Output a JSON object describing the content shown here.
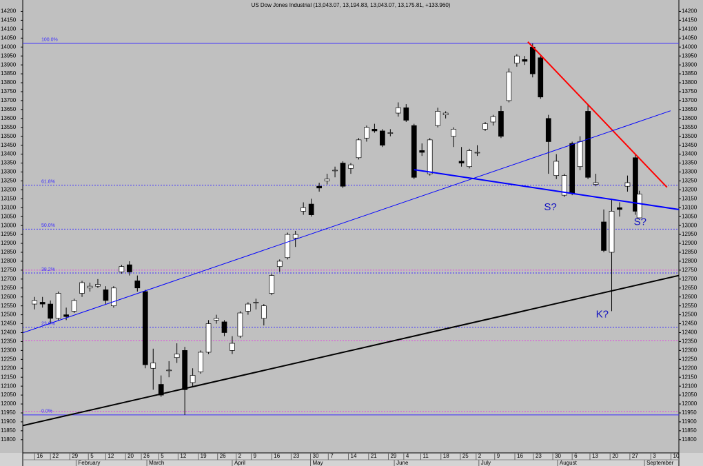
{
  "chart_data": {
    "type": "candlestick",
    "title": "US Dow Jones Industrial (13,043.07, 13,194.83, 13,043.07, 13,175.81, +133.960)",
    "up_color": "#ffffff",
    "down_color": "#000000",
    "x": [
      0,
      2,
      4,
      6,
      8,
      10,
      12,
      14,
      16,
      18,
      20,
      22,
      24,
      26,
      28,
      30,
      32,
      34,
      36,
      38,
      40,
      42,
      44,
      46,
      48,
      50,
      52,
      54,
      56,
      58,
      60,
      62,
      64,
      66,
      68,
      70,
      72,
      74,
      76,
      78,
      80,
      82,
      84,
      86,
      88,
      90,
      92,
      94,
      96,
      98,
      100,
      102,
      104,
      106,
      108,
      110,
      112,
      114,
      116,
      118,
      120,
      122,
      124,
      126,
      128,
      130,
      132,
      134,
      136,
      138,
      140,
      142,
      144,
      146,
      148,
      150,
      152,
      153
    ],
    "open": [
      12560,
      12570,
      12560,
      12480,
      12500,
      12520,
      12620,
      12650,
      12660,
      12640,
      12550,
      12740,
      12780,
      12690,
      12630,
      12200,
      12110,
      12190,
      12260,
      12300,
      12120,
      12180,
      12290,
      12470,
      12460,
      12300,
      12380,
      12520,
      12570,
      12480,
      12620,
      12770,
      12820,
      12930,
      13080,
      13120,
      13220,
      13250,
      13310,
      13350,
      13320,
      13380,
      13490,
      13540,
      13530,
      13520,
      13630,
      13660,
      13560,
      13420,
      13290,
      13560,
      13620,
      13500,
      13360,
      13330,
      13410,
      13540,
      13580,
      13640,
      13700,
      13910,
      13930,
      14000,
      13940,
      13600,
      13280,
      13170,
      13460,
      13330,
      13640,
      13230,
      13020,
      12850,
      13100,
      13220,
      13380,
      13043.07
    ],
    "high": [
      12600,
      12600,
      12580,
      12630,
      12540,
      12590,
      12690,
      12680,
      12700,
      12660,
      12660,
      12780,
      12800,
      12720,
      12640,
      12310,
      12160,
      12240,
      12340,
      12320,
      12200,
      12300,
      12470,
      12500,
      12470,
      12380,
      12520,
      12570,
      12590,
      12560,
      12730,
      12810,
      12960,
      12970,
      13130,
      13150,
      13240,
      13290,
      13330,
      13360,
      13350,
      13490,
      13560,
      13570,
      13540,
      13540,
      13690,
      13680,
      13570,
      13460,
      13490,
      13660,
      13640,
      13550,
      13440,
      13430,
      13450,
      13580,
      13620,
      13670,
      13880,
      13960,
      13950,
      14020,
      13960,
      13620,
      13400,
      13290,
      13470,
      13500,
      13680,
      13290,
      13090,
      13150,
      13130,
      13280,
      13400,
      13194.83
    ],
    "low": [
      12530,
      12540,
      12450,
      12470,
      12470,
      12510,
      12600,
      12630,
      12650,
      12560,
      12540,
      12730,
      12720,
      12630,
      12200,
      12080,
      12040,
      12150,
      12230,
      11939,
      12100,
      12170,
      12280,
      12450,
      12380,
      12280,
      12370,
      12500,
      12530,
      12440,
      12610,
      12740,
      12810,
      12880,
      13060,
      13050,
      13190,
      13230,
      13270,
      13210,
      13290,
      13370,
      13470,
      13520,
      13440,
      13500,
      13610,
      13580,
      13260,
      13390,
      13280,
      13550,
      13600,
      13440,
      13330,
      13320,
      13390,
      13530,
      13560,
      13490,
      13690,
      13890,
      13900,
      13830,
      13710,
      13290,
      13260,
      13160,
      13170,
      13310,
      13260,
      13220,
      12850,
      12520,
      13050,
      13190,
      13060,
      13043.07
    ],
    "close": [
      12580,
      12560,
      12480,
      12620,
      12490,
      12580,
      12680,
      12660,
      12670,
      12580,
      12650,
      12770,
      12740,
      12650,
      12220,
      12230,
      12050,
      12190,
      12280,
      12080,
      12160,
      12290,
      12450,
      12480,
      12400,
      12340,
      12510,
      12560,
      12570,
      12550,
      12720,
      12800,
      12950,
      12950,
      13100,
      13060,
      13210,
      13260,
      13310,
      13220,
      13340,
      13480,
      13550,
      13530,
      13450,
      13520,
      13660,
      13590,
      13270,
      13410,
      13480,
      13640,
      13630,
      13540,
      13350,
      13420,
      13410,
      13570,
      13610,
      13500,
      13860,
      13950,
      13920,
      13850,
      13720,
      13470,
      13360,
      13280,
      13180,
      13470,
      13270,
      13240,
      12860,
      13080,
      13090,
      13240,
      13080,
      13175.81
    ],
    "xlim": [
      -3,
      163
    ],
    "ylim": [
      11780,
      14225
    ],
    "yticks": [
      11800,
      11850,
      11900,
      11950,
      12000,
      12050,
      12100,
      12150,
      12200,
      12250,
      12300,
      12350,
      12400,
      12450,
      12500,
      12550,
      12600,
      12650,
      12700,
      12750,
      12800,
      12850,
      12900,
      12950,
      13000,
      13050,
      13100,
      13150,
      13200,
      13250,
      13300,
      13350,
      13400,
      13450,
      13500,
      13550,
      13600,
      13650,
      13700,
      13750,
      13800,
      13850,
      13900,
      13950,
      14000,
      14050,
      14100,
      14150,
      14200
    ],
    "xticks": [
      {
        "value": 0,
        "label": "16"
      },
      {
        "value": 4,
        "label": "22"
      },
      {
        "value": 8.9,
        "label": "29"
      },
      {
        "value": 13.6,
        "label": "5"
      },
      {
        "value": 18,
        "label": "12"
      },
      {
        "value": 23,
        "label": "20"
      },
      {
        "value": 27,
        "label": "26"
      },
      {
        "value": 31.4,
        "label": "5"
      },
      {
        "value": 36.3,
        "label": "12"
      },
      {
        "value": 41.4,
        "label": "19"
      },
      {
        "value": 46.3,
        "label": "26"
      },
      {
        "value": 51,
        "label": "2"
      },
      {
        "value": 54.8,
        "label": "9"
      },
      {
        "value": 60,
        "label": "16"
      },
      {
        "value": 64.9,
        "label": "23"
      },
      {
        "value": 69.8,
        "label": "30"
      },
      {
        "value": 74.3,
        "label": "7"
      },
      {
        "value": 79.4,
        "label": "14"
      },
      {
        "value": 84.5,
        "label": "21"
      },
      {
        "value": 89.5,
        "label": "29"
      },
      {
        "value": 93.4,
        "label": "4"
      },
      {
        "value": 97.7,
        "label": "11"
      },
      {
        "value": 102.8,
        "label": "18"
      },
      {
        "value": 107.7,
        "label": "25"
      },
      {
        "value": 111.7,
        "label": "2"
      },
      {
        "value": 116.4,
        "label": "9"
      },
      {
        "value": 121.5,
        "label": "16"
      },
      {
        "value": 126.2,
        "label": "23"
      },
      {
        "value": 131.1,
        "label": "30"
      },
      {
        "value": 136,
        "label": "6"
      },
      {
        "value": 140.5,
        "label": "13"
      },
      {
        "value": 145.6,
        "label": "20"
      },
      {
        "value": 150.6,
        "label": "27"
      },
      {
        "value": 155.9,
        "label": "3"
      },
      {
        "value": 161,
        "label": "10"
      }
    ],
    "month_ticks": [
      {
        "value": 10.5,
        "label": "February"
      },
      {
        "value": 28.4,
        "label": "March"
      },
      {
        "value": 50,
        "label": "April"
      },
      {
        "value": 69.8,
        "label": "May"
      },
      {
        "value": 91,
        "label": "June"
      },
      {
        "value": 112.4,
        "label": "July"
      },
      {
        "value": 132.3,
        "label": "August"
      },
      {
        "value": 154.3,
        "label": "September"
      }
    ],
    "fib_levels": [
      {
        "value": 14021,
        "label": "100.0%",
        "style": "solid"
      },
      {
        "value": 13226,
        "label": "61.8%",
        "style": "dotted"
      },
      {
        "value": 12980,
        "label": "50.0%",
        "style": "dotted"
      },
      {
        "value": 12734,
        "label": "38.2%",
        "style": "dotted"
      },
      {
        "value": 12430,
        "label": "23.6%",
        "style": "dotted"
      },
      {
        "value": 11939,
        "label": "0.0%",
        "style": "solid"
      }
    ],
    "fib_color": "#3b2cff",
    "levels": [
      12750,
      12355,
      11958
    ],
    "level_color": "#e040e0",
    "trendlines": [
      {
        "color": "#ff0000",
        "width": 2,
        "points": [
          [
            124.8,
            14029
          ],
          [
            160,
            13214
          ]
        ]
      },
      {
        "color": "#0000ff",
        "width": 1,
        "points": [
          [
            -3,
            12399
          ],
          [
            160.9,
            13643
          ]
        ]
      },
      {
        "color": "#0000ff",
        "width": 2,
        "points": [
          [
            96,
            13313
          ],
          [
            163.2,
            13089
          ]
        ]
      },
      {
        "color": "#000000",
        "width": 2,
        "points": [
          [
            -3,
            11879
          ],
          [
            163.2,
            12721
          ]
        ]
      }
    ],
    "annotation_color": "#1010c0",
    "annotations": [
      {
        "text": "S?",
        "x": 130.5,
        "y": 13100
      },
      {
        "text": "S?",
        "x": 153.2,
        "y": 13017
      },
      {
        "text": "K?",
        "x": 143.6,
        "y": 12501
      }
    ]
  }
}
